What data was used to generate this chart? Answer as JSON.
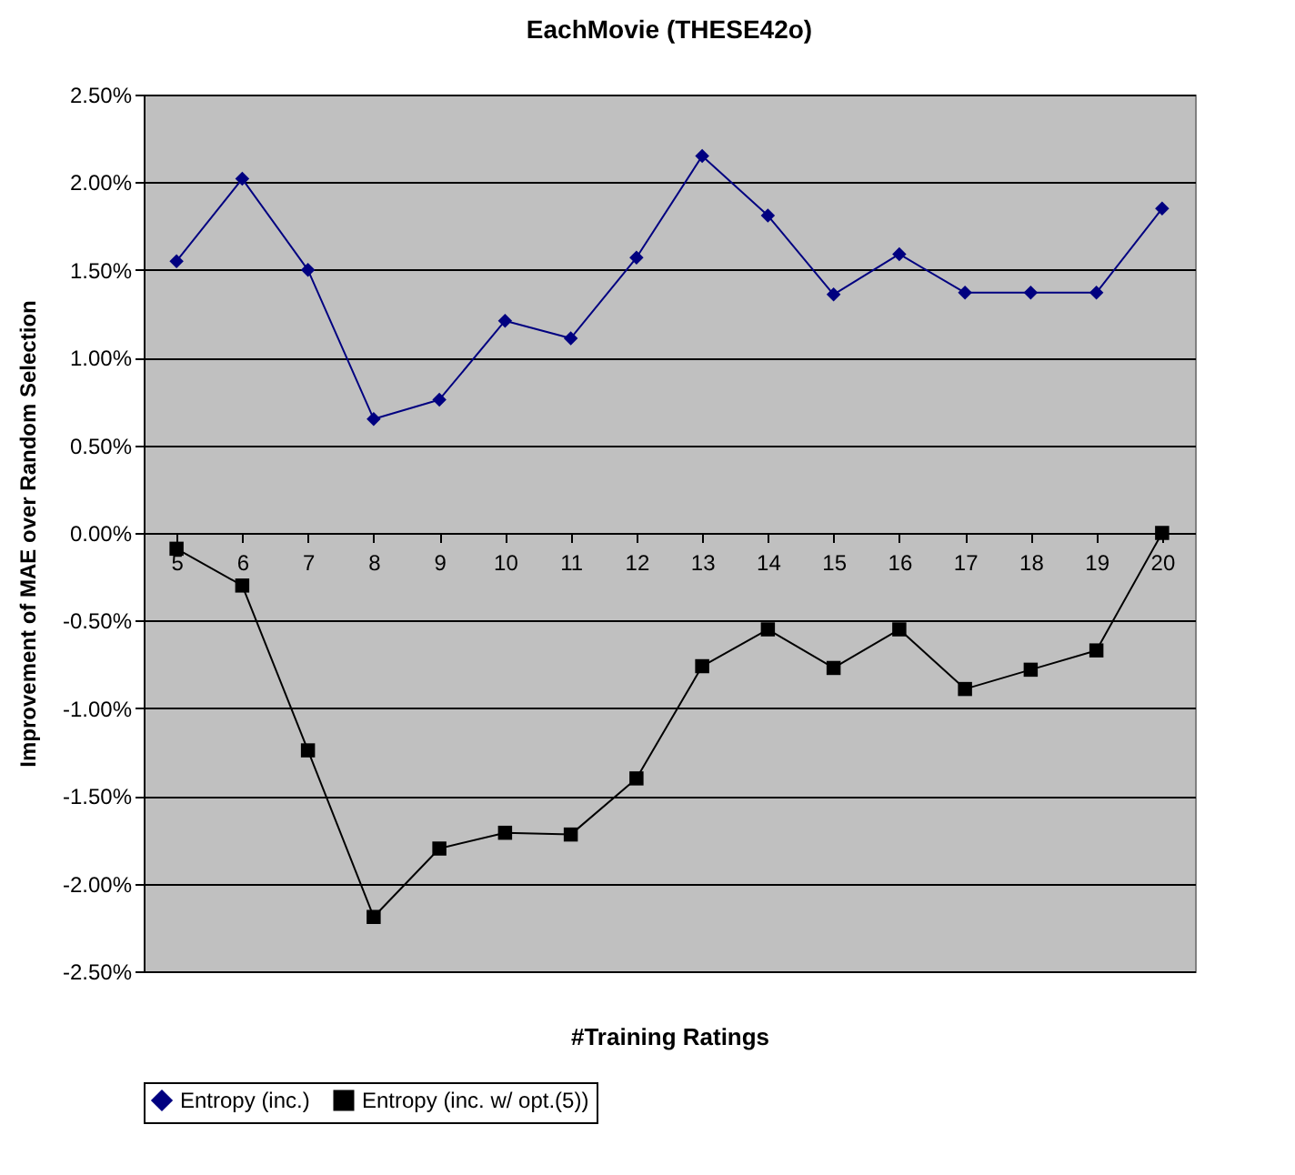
{
  "chart_data": {
    "type": "line",
    "title": "EachMovie (THESE42o)",
    "xlabel": "#Training Ratings",
    "ylabel": "Improvement of MAE over Random Selection",
    "categories": [
      "5",
      "6",
      "7",
      "8",
      "9",
      "10",
      "11",
      "12",
      "13",
      "14",
      "15",
      "16",
      "17",
      "18",
      "19",
      "20"
    ],
    "series": [
      {
        "name": "Entropy (inc.)",
        "color": "#000080",
        "marker": "diamond",
        "values": [
          1.55,
          2.02,
          1.5,
          0.65,
          0.76,
          1.21,
          1.11,
          1.57,
          2.15,
          1.81,
          1.36,
          1.59,
          1.37,
          1.37,
          1.37,
          1.85
        ]
      },
      {
        "name": "Entropy (inc. w/ opt.(5))",
        "color": "#000000",
        "marker": "square",
        "values": [
          -0.09,
          -0.3,
          -1.24,
          -2.19,
          -1.8,
          -1.71,
          -1.72,
          -1.4,
          -0.76,
          -0.55,
          -0.77,
          -0.55,
          -0.89,
          -0.78,
          -0.67,
          0.0
        ]
      }
    ],
    "ylim": [
      -2.5,
      2.5
    ],
    "yticks": [
      {
        "value": -2.5,
        "label": "-2.50%"
      },
      {
        "value": -2,
        "label": "-2.00%"
      },
      {
        "value": -1.5,
        "label": "-1.50%"
      },
      {
        "value": -1,
        "label": "-1.00%"
      },
      {
        "value": -0.5,
        "label": "-0.50%"
      },
      {
        "value": 0,
        "label": "0.00%"
      },
      {
        "value": 0.5,
        "label": "0.50%"
      },
      {
        "value": 1,
        "label": "1.00%"
      },
      {
        "value": 1.5,
        "label": "1.50%"
      },
      {
        "value": 2,
        "label": "2.00%"
      },
      {
        "value": 2.5,
        "label": "2.50%"
      }
    ],
    "grid": "y",
    "legend": "bottom"
  }
}
